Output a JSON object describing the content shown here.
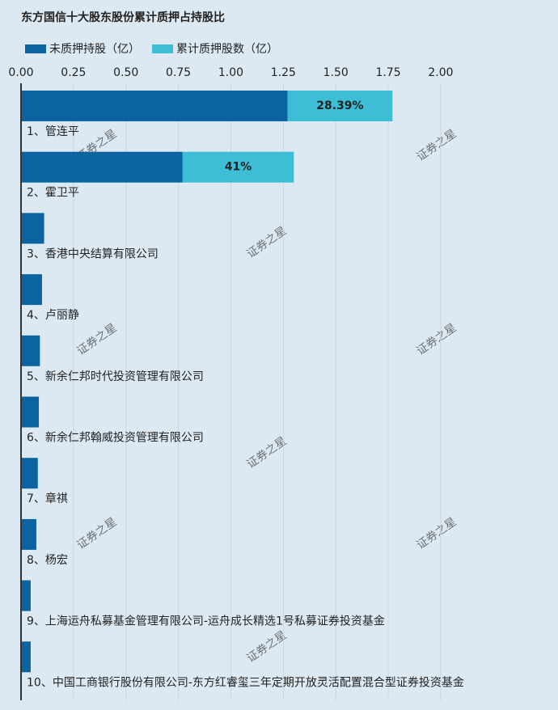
{
  "chart_data": {
    "type": "stacked-barh",
    "title": "东方国信十大股东股份累计质押占持股比",
    "watermark": "证券之星",
    "categories": [
      "1、管连平",
      "2、霍卫平",
      "3、香港中央结算有限公司",
      "4、卢丽静",
      "5、新余仁邦时代投资管理有限公司",
      "6、新余仁邦翰威投资管理有限公司",
      "7、章祺",
      "8、杨宏",
      "9、上海运舟私募基金管理有限公司-运舟成长精选1号私募证券投资基金",
      "10、中国工商银行股份有限公司-东方红睿玺三年定期开放灵活配置混合型证券投资基金"
    ],
    "series": [
      {
        "name": "未质押持股（亿）",
        "color": "#0b64a0",
        "values": [
          1.27,
          0.77,
          0.11,
          0.1,
          0.09,
          0.085,
          0.08,
          0.073,
          0.046,
          0.046
        ]
      },
      {
        "name": "累计质押股数（亿）",
        "color": "#3ebdd7",
        "values": [
          0.5,
          0.53,
          null,
          null,
          null,
          null,
          null,
          null,
          null,
          null
        ]
      }
    ],
    "ratio_labels": [
      {
        "value": 28.39,
        "label": "28.39%"
      },
      {
        "value": 41,
        "label": "41%"
      },
      null,
      null,
      null,
      null,
      null,
      null,
      null,
      null
    ],
    "xlim": [
      0,
      2.55
    ],
    "xticks": [
      {
        "value": 0,
        "label": "0.00"
      },
      {
        "value": 0.25,
        "label": "0.25"
      },
      {
        "value": 0.5,
        "label": "0.50"
      },
      {
        "value": 0.75,
        "label": "0.75"
      },
      {
        "value": 1,
        "label": "1.00"
      },
      {
        "value": 1.25,
        "label": "1.25"
      },
      {
        "value": 1.5,
        "label": "1.50"
      },
      {
        "value": 1.75,
        "label": "1.75"
      },
      {
        "value": 2,
        "label": "2.00"
      }
    ],
    "grid": true
  }
}
